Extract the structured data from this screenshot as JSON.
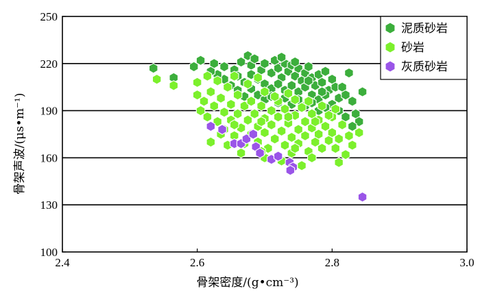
{
  "chart_data": {
    "type": "scatter",
    "xlabel": "骨架密度/(g•cm⁻³)",
    "ylabel": "骨架声波/(μs•m⁻¹)",
    "xlim": [
      2.4,
      3.0
    ],
    "ylim": [
      100,
      250
    ],
    "xticks": [
      2.4,
      2.6,
      2.8,
      3.0
    ],
    "xtick_labels": [
      "2.4",
      "2.6",
      "2.8",
      "3.0"
    ],
    "yticks": [
      100,
      130,
      160,
      190,
      220,
      250
    ],
    "ytick_labels": [
      "100",
      "130",
      "160",
      "190",
      "220",
      "250"
    ],
    "grid": "horizontal",
    "legend_position": "top-right",
    "series": [
      {
        "name": "泥质砂岩",
        "color": "#3cae3c",
        "marker": "hexagon",
        "points": [
          [
            2.535,
            217
          ],
          [
            2.565,
            211
          ],
          [
            2.595,
            218
          ],
          [
            2.605,
            222
          ],
          [
            2.625,
            220
          ],
          [
            2.64,
            218
          ],
          [
            2.655,
            216
          ],
          [
            2.665,
            221
          ],
          [
            2.675,
            225
          ],
          [
            2.68,
            219
          ],
          [
            2.685,
            223
          ],
          [
            2.695,
            216
          ],
          [
            2.7,
            220
          ],
          [
            2.71,
            214
          ],
          [
            2.715,
            222
          ],
          [
            2.72,
            217
          ],
          [
            2.725,
            211
          ],
          [
            2.73,
            220
          ],
          [
            2.735,
            215
          ],
          [
            2.74,
            219
          ],
          [
            2.745,
            212
          ],
          [
            2.75,
            217
          ],
          [
            2.755,
            209
          ],
          [
            2.76,
            214
          ],
          [
            2.765,
            218
          ],
          [
            2.77,
            211
          ],
          [
            2.775,
            206
          ],
          [
            2.78,
            213
          ],
          [
            2.785,
            208
          ],
          [
            2.79,
            215
          ],
          [
            2.795,
            203
          ],
          [
            2.8,
            210
          ],
          [
            2.805,
            205
          ],
          [
            2.81,
            198
          ],
          [
            2.815,
            205
          ],
          [
            2.82,
            200
          ],
          [
            2.825,
            214
          ],
          [
            2.83,
            196
          ],
          [
            2.835,
            188
          ],
          [
            2.84,
            183
          ],
          [
            2.845,
            202
          ],
          [
            2.69,
            210
          ],
          [
            2.7,
            207
          ],
          [
            2.71,
            204
          ],
          [
            2.72,
            207
          ],
          [
            2.73,
            203
          ],
          [
            2.74,
            206
          ],
          [
            2.75,
            202
          ],
          [
            2.76,
            205
          ],
          [
            2.77,
            200
          ],
          [
            2.78,
            197
          ],
          [
            2.79,
            200
          ],
          [
            2.8,
            194
          ],
          [
            2.81,
            190
          ],
          [
            2.82,
            186
          ],
          [
            2.83,
            180
          ],
          [
            2.66,
            212
          ],
          [
            2.67,
            208
          ],
          [
            2.68,
            213
          ],
          [
            2.65,
            206
          ],
          [
            2.64,
            210
          ],
          [
            2.63,
            213
          ],
          [
            2.62,
            215
          ],
          [
            2.66,
            203
          ],
          [
            2.67,
            199
          ],
          [
            2.68,
            204
          ],
          [
            2.69,
            200
          ],
          [
            2.7,
            197
          ],
          [
            2.71,
            199
          ],
          [
            2.72,
            195
          ],
          [
            2.73,
            198
          ],
          [
            2.74,
            194
          ],
          [
            2.75,
            197
          ],
          [
            2.76,
            193
          ],
          [
            2.77,
            195
          ],
          [
            2.78,
            190
          ],
          [
            2.79,
            192
          ],
          [
            2.725,
            224
          ],
          [
            2.745,
            221
          ],
          [
            2.765,
            209
          ],
          [
            2.785,
            202
          ]
        ]
      },
      {
        "name": "砂岩",
        "color": "#7cf02c",
        "marker": "hexagon",
        "points": [
          [
            2.54,
            210
          ],
          [
            2.565,
            206
          ],
          [
            2.6,
            208
          ],
          [
            2.6,
            200
          ],
          [
            2.605,
            190
          ],
          [
            2.61,
            196
          ],
          [
            2.615,
            186
          ],
          [
            2.62,
            202
          ],
          [
            2.625,
            193
          ],
          [
            2.63,
            183
          ],
          [
            2.635,
            198
          ],
          [
            2.64,
            189
          ],
          [
            2.64,
            178
          ],
          [
            2.645,
            205
          ],
          [
            2.65,
            194
          ],
          [
            2.65,
            184
          ],
          [
            2.655,
            174
          ],
          [
            2.66,
            200
          ],
          [
            2.66,
            188
          ],
          [
            2.665,
            179
          ],
          [
            2.67,
            193
          ],
          [
            2.67,
            169
          ],
          [
            2.675,
            184
          ],
          [
            2.68,
            175
          ],
          [
            2.68,
            196
          ],
          [
            2.685,
            188
          ],
          [
            2.69,
            180
          ],
          [
            2.69,
            170
          ],
          [
            2.695,
            193
          ],
          [
            2.7,
            185
          ],
          [
            2.7,
            176
          ],
          [
            2.705,
            166
          ],
          [
            2.71,
            190
          ],
          [
            2.71,
            181
          ],
          [
            2.715,
            172
          ],
          [
            2.72,
            186
          ],
          [
            2.72,
            196
          ],
          [
            2.725,
            177
          ],
          [
            2.73,
            168
          ],
          [
            2.73,
            191
          ],
          [
            2.735,
            182
          ],
          [
            2.74,
            173
          ],
          [
            2.74,
            163
          ],
          [
            2.745,
            187
          ],
          [
            2.75,
            178
          ],
          [
            2.75,
            169
          ],
          [
            2.755,
            192
          ],
          [
            2.76,
            183
          ],
          [
            2.76,
            174
          ],
          [
            2.765,
            164
          ],
          [
            2.77,
            188
          ],
          [
            2.77,
            179
          ],
          [
            2.775,
            170
          ],
          [
            2.78,
            184
          ],
          [
            2.78,
            175
          ],
          [
            2.785,
            166
          ],
          [
            2.79,
            180
          ],
          [
            2.795,
            171
          ],
          [
            2.8,
            176
          ],
          [
            2.8,
            186
          ],
          [
            2.805,
            166
          ],
          [
            2.81,
            172
          ],
          [
            2.815,
            181
          ],
          [
            2.82,
            162
          ],
          [
            2.825,
            174
          ],
          [
            2.83,
            168
          ],
          [
            2.84,
            176
          ],
          [
            2.755,
            155
          ],
          [
            2.77,
            160
          ],
          [
            2.81,
            157
          ],
          [
            2.62,
            170
          ],
          [
            2.635,
            175
          ],
          [
            2.645,
            168
          ],
          [
            2.665,
            163
          ],
          [
            2.7,
            160
          ],
          [
            2.725,
            158
          ],
          [
            2.63,
            209
          ],
          [
            2.655,
            212
          ],
          [
            2.675,
            207
          ],
          [
            2.69,
            211
          ],
          [
            2.7,
            202
          ],
          [
            2.715,
            199
          ],
          [
            2.735,
            201
          ],
          [
            2.745,
            197
          ],
          [
            2.765,
            196
          ],
          [
            2.785,
            193
          ],
          [
            2.805,
            191
          ],
          [
            2.795,
            187
          ],
          [
            2.615,
            212
          ],
          [
            2.655,
            181
          ],
          [
            2.695,
            183
          ],
          [
            2.735,
            186
          ],
          [
            2.775,
            183
          ],
          [
            2.695,
            164
          ],
          [
            2.745,
            166
          ]
        ]
      },
      {
        "name": "灰质砂岩",
        "color": "#9a55e8",
        "marker": "hexagon",
        "points": [
          [
            2.62,
            180
          ],
          [
            2.637,
            178
          ],
          [
            2.655,
            169
          ],
          [
            2.665,
            169
          ],
          [
            2.673,
            172
          ],
          [
            2.683,
            175
          ],
          [
            2.687,
            167
          ],
          [
            2.693,
            163
          ],
          [
            2.71,
            159
          ],
          [
            2.72,
            161
          ],
          [
            2.737,
            157
          ],
          [
            2.742,
            154
          ],
          [
            2.738,
            152
          ],
          [
            2.845,
            135
          ]
        ]
      }
    ]
  }
}
